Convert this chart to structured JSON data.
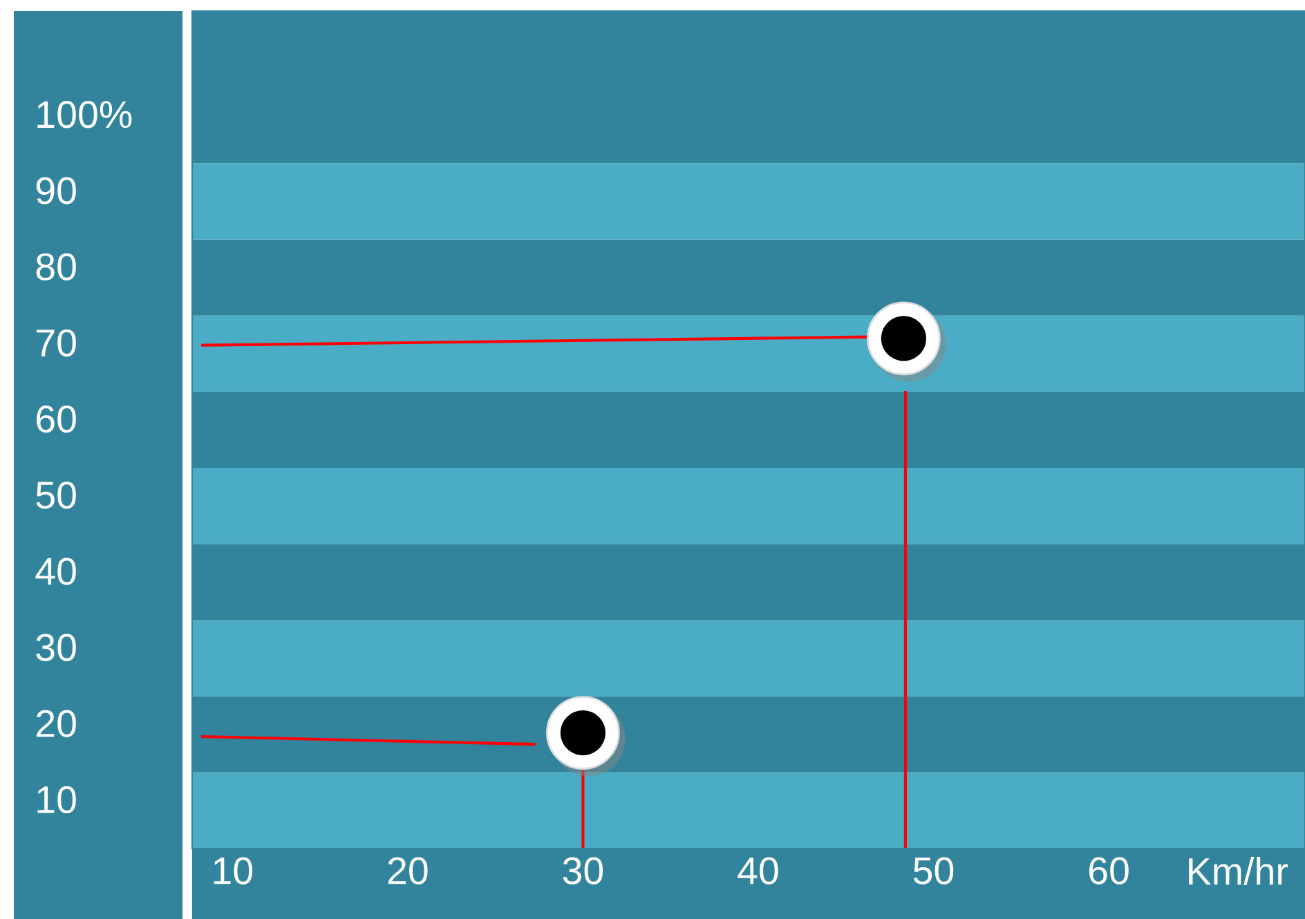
{
  "chart_data": {
    "type": "scatter",
    "xlabel": "Km/hr",
    "xlim": [
      7.7,
      71.2
    ],
    "xticks": [
      10,
      20,
      30,
      40,
      50,
      60
    ],
    "ylim": [
      3.5,
      113.5
    ],
    "yticks": [
      10,
      20,
      30,
      40,
      50,
      60,
      70,
      80,
      90,
      {
        "value": 100,
        "label": "100%"
      }
    ],
    "grid": false,
    "legend": false,
    "marker": "circle",
    "bands": [
      {
        "axis": "y",
        "from": 3.5,
        "to": 13.5,
        "color": "#4bacc6"
      },
      {
        "axis": "y",
        "from": 13.5,
        "to": 23.5,
        "color": "#31849b"
      },
      {
        "axis": "y",
        "from": 23.5,
        "to": 33.5,
        "color": "#4bacc6"
      },
      {
        "axis": "y",
        "from": 33.5,
        "to": 43.5,
        "color": "#31849b"
      },
      {
        "axis": "y",
        "from": 43.5,
        "to": 53.5,
        "color": "#4bacc6"
      },
      {
        "axis": "y",
        "from": 53.5,
        "to": 63.5,
        "color": "#31849b"
      },
      {
        "axis": "y",
        "from": 63.5,
        "to": 73.5,
        "color": "#4bacc6"
      },
      {
        "axis": "y",
        "from": 73.5,
        "to": 83.5,
        "color": "#31849b"
      },
      {
        "axis": "y",
        "from": 83.5,
        "to": 93.5,
        "color": "#4bacc6"
      },
      {
        "axis": "y",
        "from": 93.5,
        "to": 113.5,
        "color": "#31849b"
      }
    ],
    "series": [
      {
        "type": "line",
        "marker": "none",
        "color": "#ff0000",
        "x": [
          8.3,
          46.2
        ],
        "values": [
          69.6,
          70.7
        ]
      },
      {
        "type": "line",
        "marker": "none",
        "color": "#ff0000",
        "x": [
          48.4,
          48.4
        ],
        "values": [
          63.4,
          3.5
        ]
      },
      {
        "type": "line",
        "marker": "none",
        "color": "#ff0000",
        "x": [
          8.3,
          27.2
        ],
        "values": [
          18.2,
          17.2
        ]
      },
      {
        "type": "line",
        "marker": "none",
        "color": "#ff0000",
        "x": [
          30,
          30
        ],
        "values": [
          14.0,
          3.5
        ]
      },
      {
        "type": "scatter",
        "color": "#000000",
        "x": [
          30,
          48.3
        ],
        "values": [
          18.7,
          70.5
        ]
      }
    ]
  }
}
